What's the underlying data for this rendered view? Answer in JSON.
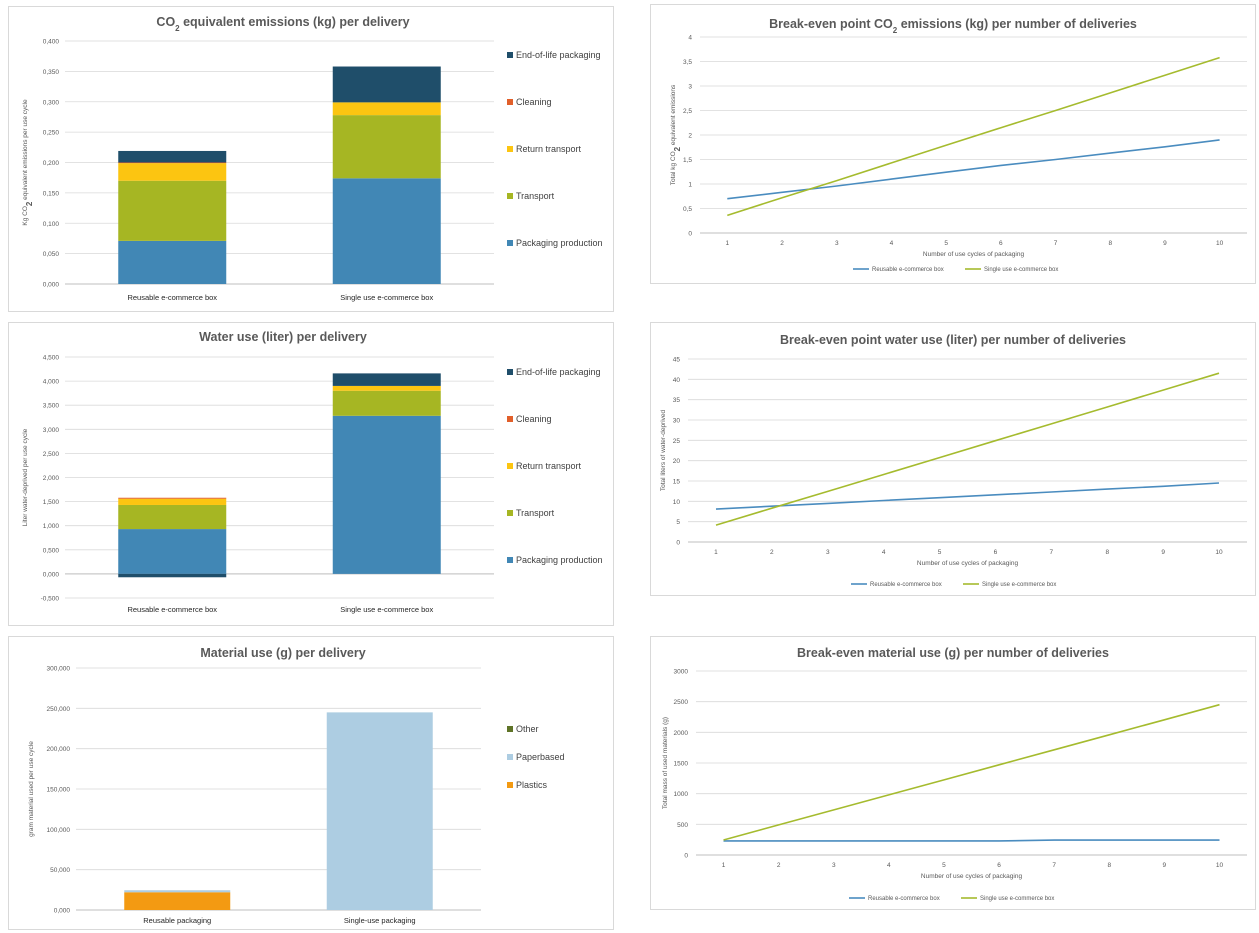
{
  "colors": {
    "packaging_production": "#4187b5",
    "transport": "#a6b623",
    "return_transport": "#fcc511",
    "cleaning": "#e15f2a",
    "end_of_life": "#1f4e6a",
    "other": "#5e7327",
    "paperbased": "#adcde2",
    "plastics": "#f39a12",
    "reusable_line": "#4a8cbf",
    "single_line": "#a5bb2e"
  },
  "titles": {
    "co2_bar": {
      "pre": "CO",
      "sub": "2",
      "post": " equivalent emissions (kg) per delivery"
    },
    "water_bar": "Water use (liter) per delivery",
    "material_bar": "Material use (g) per delivery",
    "co2_line": {
      "pre": "Break-even point CO",
      "sub": "2",
      "post": " emissions (kg) per number of deliveries"
    },
    "water_line": "Break-even point water use (liter) per number of deliveries",
    "material_line": "Break-even material use (g) per number of deliveries"
  },
  "axis_labels": {
    "co2_bar_y": {
      "pre": "Kg CO",
      "sub": "2",
      "post": " equivalent emissions per use cycle"
    },
    "water_bar_y": "Liter water-deprived per use cycle",
    "material_bar_y": "gram material used per use cycle",
    "co2_line_y": {
      "pre": "Total kg CO",
      "sub": "2",
      "post": " equivalent emissions"
    },
    "water_line_y": "Total liters of water-deprived",
    "material_line_y": "Total mass of used materials (g)",
    "line_x": "Number of use cycles of packaging"
  },
  "chart_data": [
    {
      "id": "co2_bar",
      "type": "bar",
      "stacked": true,
      "categories": [
        "Reusable e-commerce box",
        "Single use e-commerce box"
      ],
      "series": [
        {
          "name": "Packaging production",
          "color_key": "packaging_production",
          "values": [
            0.071,
            0.174
          ]
        },
        {
          "name": "Transport",
          "color_key": "transport",
          "values": [
            0.099,
            0.104
          ]
        },
        {
          "name": "Return transport",
          "color_key": "return_transport",
          "values": [
            0.029,
            0.021
          ]
        },
        {
          "name": "Cleaning",
          "color_key": "cleaning",
          "values": [
            0.001,
            0.0
          ]
        },
        {
          "name": "End-of-life  packaging",
          "color_key": "end_of_life",
          "values": [
            0.019,
            0.059
          ]
        }
      ],
      "ylim": [
        0,
        0.4
      ],
      "yticks": [
        "0,000",
        "0,050",
        "0,100",
        "0,150",
        "0,200",
        "0,250",
        "0,300",
        "0,350",
        "0,400"
      ],
      "ytick_values": [
        0,
        0.05,
        0.1,
        0.15,
        0.2,
        0.25,
        0.3,
        0.35,
        0.4
      ],
      "grid": true,
      "legend": "right"
    },
    {
      "id": "water_bar",
      "type": "bar",
      "stacked": true,
      "categories": [
        "Reusable e-commerce box",
        "Single use e-commerce box"
      ],
      "series": [
        {
          "name": "Packaging production",
          "color_key": "packaging_production",
          "values": [
            0.93,
            3.28
          ]
        },
        {
          "name": "Transport",
          "color_key": "transport",
          "values": [
            0.5,
            0.52
          ]
        },
        {
          "name": "Return transport",
          "color_key": "return_transport",
          "values": [
            0.13,
            0.1
          ]
        },
        {
          "name": "Cleaning",
          "color_key": "cleaning",
          "values": [
            0.02,
            0.0
          ]
        },
        {
          "name": "End-of-life  packaging",
          "color_key": "end_of_life",
          "values": [
            -0.07,
            0.26
          ]
        }
      ],
      "ylim": [
        -0.5,
        4.5
      ],
      "yticks": [
        "-0,500",
        "0,000",
        "0,500",
        "1,000",
        "1,500",
        "2,000",
        "2,500",
        "3,000",
        "3,500",
        "4,000",
        "4,500"
      ],
      "ytick_values": [
        -0.5,
        0,
        0.5,
        1,
        1.5,
        2,
        2.5,
        3,
        3.5,
        4,
        4.5
      ],
      "grid": true,
      "legend": "right"
    },
    {
      "id": "material_bar",
      "type": "bar",
      "stacked": true,
      "categories": [
        "Reusable packaging",
        "Single-use packaging"
      ],
      "series": [
        {
          "name": "Plastics",
          "color_key": "plastics",
          "values": [
            22,
            0
          ]
        },
        {
          "name": "Paperbased",
          "color_key": "paperbased",
          "values": [
            2.5,
            245
          ]
        },
        {
          "name": "Other",
          "color_key": "other",
          "values": [
            0,
            0
          ]
        }
      ],
      "ylim": [
        0,
        300
      ],
      "yticks": [
        "0,000",
        "50,000",
        "100,000",
        "150,000",
        "200,000",
        "250,000",
        "300,000"
      ],
      "ytick_values": [
        0,
        50,
        100,
        150,
        200,
        250,
        300
      ],
      "grid": true,
      "legend": "right"
    },
    {
      "id": "co2_line",
      "type": "line",
      "x": [
        1,
        2,
        3,
        4,
        5,
        6,
        7,
        8,
        9,
        10
      ],
      "series": [
        {
          "name": "Reusable e-commerce box",
          "color_key": "reusable_line",
          "values": [
            0.7,
            0.83,
            0.96,
            1.1,
            1.24,
            1.38,
            1.5,
            1.63,
            1.76,
            1.9
          ]
        },
        {
          "name": "Single use e-commerce box",
          "color_key": "single_line",
          "values": [
            0.36,
            0.72,
            1.07,
            1.43,
            1.79,
            2.15,
            2.5,
            2.86,
            3.22,
            3.58
          ]
        }
      ],
      "ylim": [
        0,
        4
      ],
      "yticks": [
        "0",
        "0,5",
        "1",
        "1,5",
        "2",
        "2,5",
        "3",
        "3,5",
        "4"
      ],
      "ytick_values": [
        0,
        0.5,
        1,
        1.5,
        2,
        2.5,
        3,
        3.5,
        4
      ],
      "grid": true,
      "legend": "bottom"
    },
    {
      "id": "water_line",
      "type": "line",
      "x": [
        1,
        2,
        3,
        4,
        5,
        6,
        7,
        8,
        9,
        10
      ],
      "series": [
        {
          "name": "Reusable e-commerce box",
          "color_key": "reusable_line",
          "values": [
            8.1,
            8.8,
            9.5,
            10.2,
            10.9,
            11.6,
            12.3,
            13.0,
            13.7,
            14.5
          ]
        },
        {
          "name": "Single use e-commerce box",
          "color_key": "single_line",
          "values": [
            4.15,
            8.3,
            12.45,
            16.6,
            20.75,
            24.9,
            29.05,
            33.2,
            37.35,
            41.5
          ]
        }
      ],
      "ylim": [
        0,
        45
      ],
      "yticks": [
        "0",
        "5",
        "10",
        "15",
        "20",
        "25",
        "30",
        "35",
        "40",
        "45"
      ],
      "ytick_values": [
        0,
        5,
        10,
        15,
        20,
        25,
        30,
        35,
        40,
        45
      ],
      "grid": true,
      "legend": "bottom"
    },
    {
      "id": "material_line",
      "type": "line",
      "x": [
        1,
        2,
        3,
        4,
        5,
        6,
        7,
        8,
        9,
        10
      ],
      "series": [
        {
          "name": "Reusable e-commerce box",
          "color_key": "reusable_line",
          "values": [
            230,
            230,
            230,
            230,
            230,
            230,
            243,
            243,
            243,
            243
          ]
        },
        {
          "name": "Single use e-commerce box",
          "color_key": "single_line",
          "values": [
            245,
            490,
            735,
            980,
            1225,
            1470,
            1715,
            1960,
            2205,
            2450
          ]
        }
      ],
      "ylim": [
        0,
        3000
      ],
      "yticks": [
        "0",
        "500",
        "1000",
        "1500",
        "2000",
        "2500",
        "3000"
      ],
      "ytick_values": [
        0,
        500,
        1000,
        1500,
        2000,
        2500,
        3000
      ],
      "grid": true,
      "legend": "bottom"
    }
  ]
}
